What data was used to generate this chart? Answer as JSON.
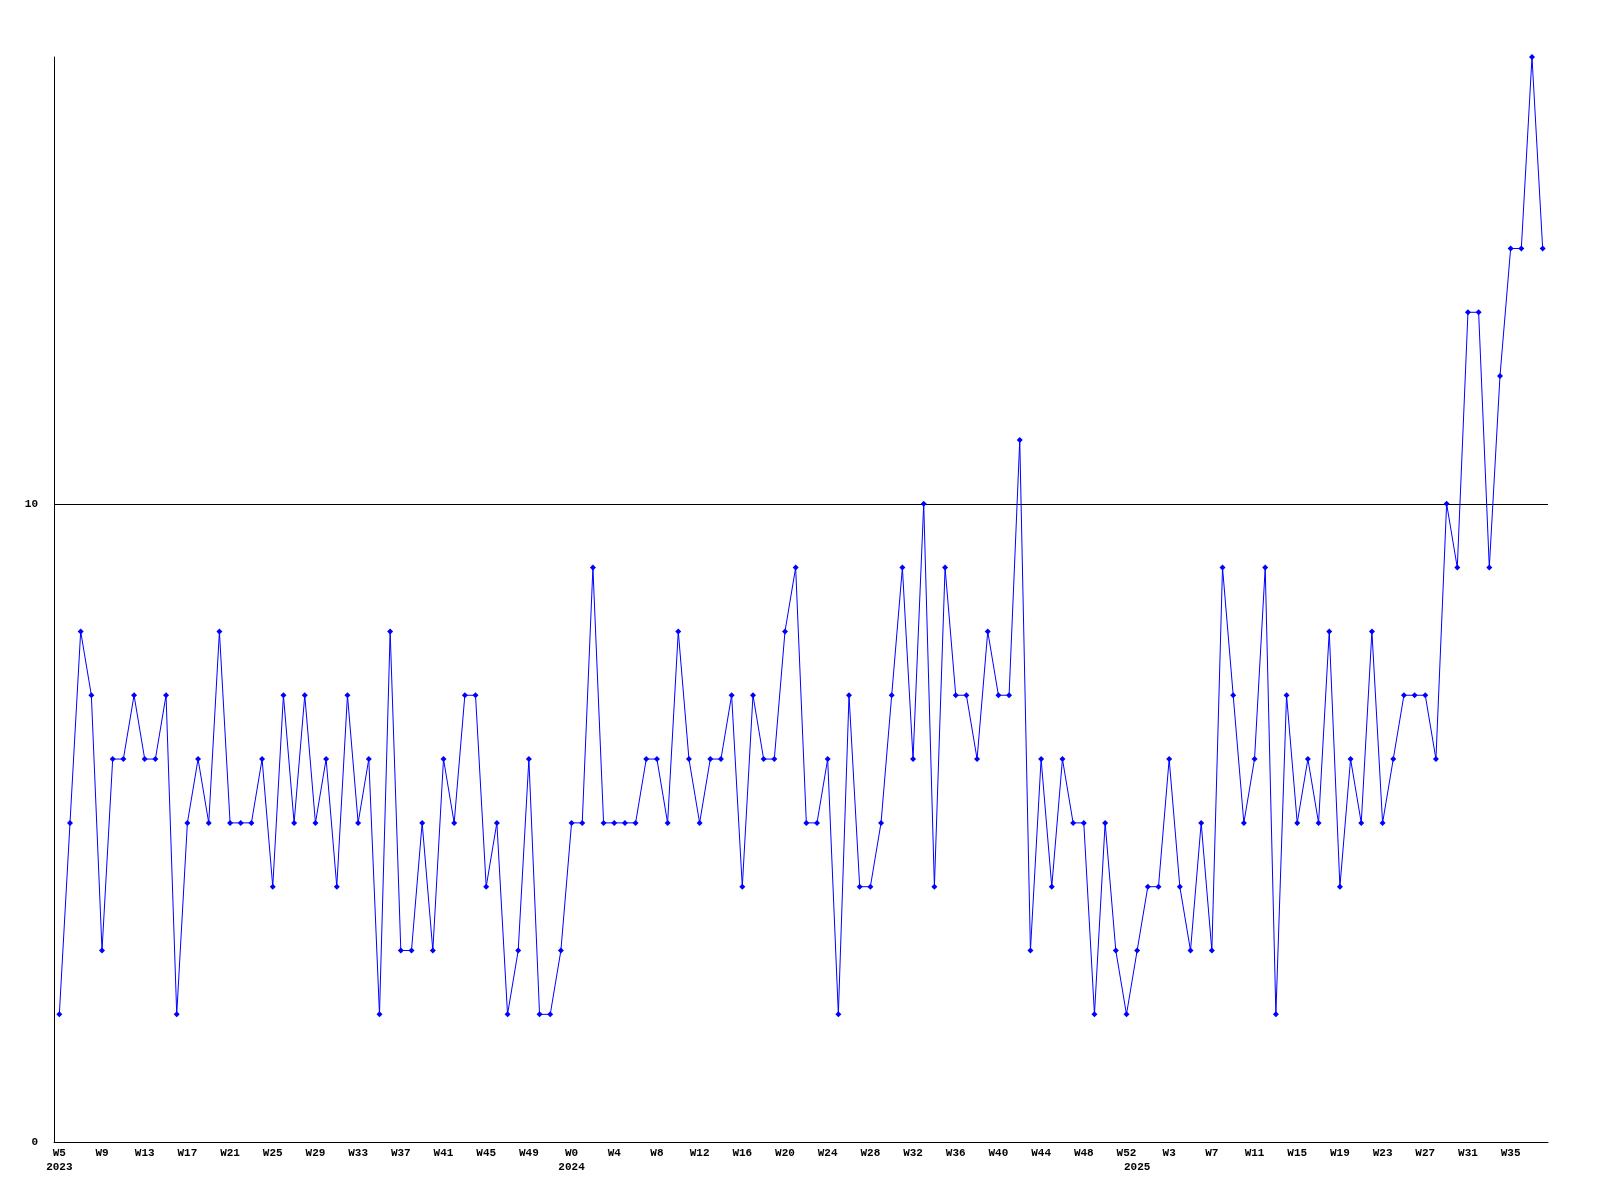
{
  "chart_data": {
    "type": "line",
    "categories": [
      "W5\n2023",
      null,
      null,
      null,
      "W9",
      null,
      null,
      null,
      "W13",
      null,
      null,
      null,
      "W17",
      null,
      null,
      null,
      "W21",
      null,
      null,
      null,
      "W25",
      null,
      null,
      null,
      "W29",
      null,
      null,
      null,
      "W33",
      null,
      null,
      null,
      "W37",
      null,
      null,
      null,
      "W41",
      null,
      null,
      null,
      "W45",
      null,
      null,
      null,
      "W49",
      null,
      null,
      null,
      "W0\n2024",
      null,
      null,
      null,
      "W4",
      null,
      null,
      null,
      "W8",
      null,
      null,
      null,
      "W12",
      null,
      null,
      null,
      "W16",
      null,
      null,
      null,
      "W20",
      null,
      null,
      null,
      "W24",
      null,
      null,
      null,
      "W28",
      null,
      null,
      null,
      "W32",
      null,
      null,
      null,
      "W36",
      null,
      null,
      null,
      "W40",
      null,
      null,
      null,
      "W44",
      null,
      null,
      null,
      "W48",
      null,
      null,
      null,
      "W52",
      "\n2025",
      null,
      null,
      "W3",
      null,
      null,
      null,
      "W7",
      null,
      null,
      null,
      "W11",
      null,
      null,
      null,
      "W15",
      null,
      null,
      null,
      "W19",
      null,
      null,
      null,
      "W23",
      null,
      null,
      null,
      "W27",
      null,
      null,
      null,
      "W31",
      null,
      null,
      null,
      "W35",
      null,
      null,
      null
    ],
    "series": [
      {
        "color": "#0000ff",
        "values": [
          2,
          5,
          8,
          7,
          3,
          6,
          6,
          7,
          6,
          6,
          7,
          2,
          5,
          6,
          5,
          8,
          5,
          5,
          5,
          6,
          4,
          7,
          5,
          7,
          5,
          6,
          4,
          7,
          5,
          6,
          2,
          8,
          3,
          3,
          5,
          3,
          6,
          5,
          7,
          7,
          4,
          5,
          2,
          3,
          6,
          2,
          2,
          3,
          5,
          5,
          9,
          5,
          5,
          5,
          5,
          6,
          6,
          5,
          8,
          6,
          5,
          6,
          6,
          7,
          4,
          7,
          6,
          6,
          8,
          9,
          5,
          5,
          6,
          2,
          7,
          4,
          4,
          5,
          7,
          9,
          6,
          10,
          4,
          9,
          7,
          7,
          6,
          8,
          7,
          7,
          11,
          3,
          6,
          4,
          6,
          5,
          5,
          2,
          5,
          3,
          2,
          3,
          4,
          4,
          6,
          4,
          3,
          5,
          3,
          9,
          7,
          5,
          6,
          9,
          2,
          7,
          5,
          6,
          5,
          8,
          4,
          6,
          5,
          8,
          5,
          6,
          7,
          7,
          7,
          6,
          10,
          9,
          13,
          13,
          9,
          12,
          14,
          14,
          17,
          14
        ]
      }
    ],
    "ylim": [
      0,
      17
    ],
    "yticks": [
      0,
      10
    ],
    "grid": "y",
    "marker": "diamond",
    "line_style": "solid"
  }
}
